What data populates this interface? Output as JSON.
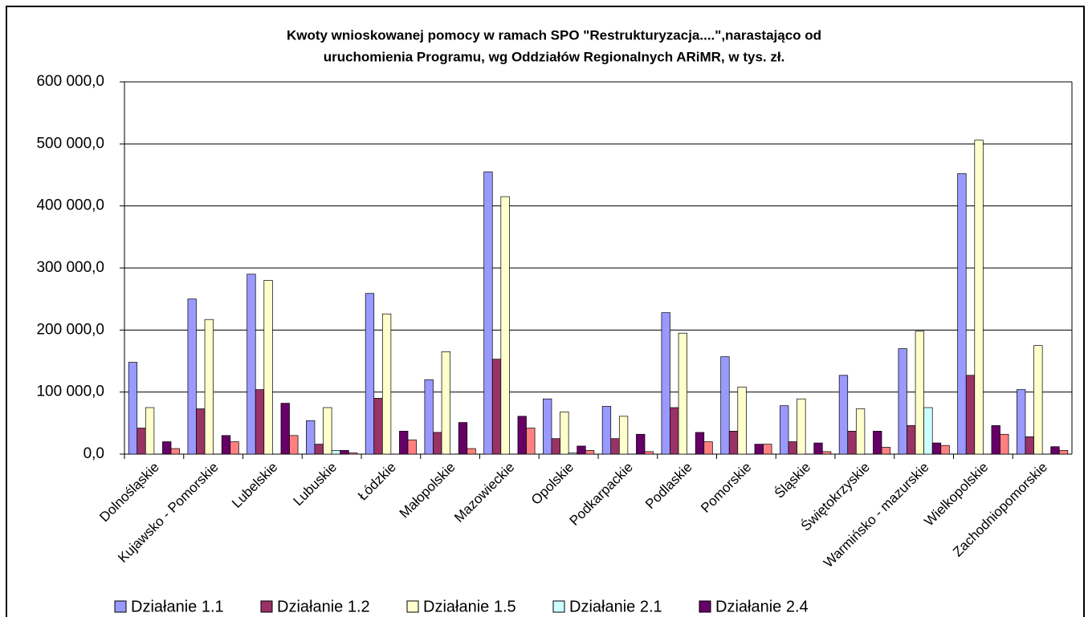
{
  "chart_data": {
    "type": "bar",
    "title": [
      "Kwoty wnioskowanej pomocy w ramach SPO \"Restrukturyzacja....\",narastająco od",
      "uruchomienia Programu, wg Oddziałów Regionalnych ARiMR, w tys. zł."
    ],
    "categories": [
      "Dolnośląskie",
      "Kujawsko - Pomorskie",
      "Lubelskie",
      "Lubuskie",
      "Łódzkie",
      "Małopolskie",
      "Mazowieckie",
      "Opolskie",
      "Podkarpackie",
      "Podlaskie",
      "Pomorskie",
      "Śląskie",
      "Świętokrzyskie",
      "Warmińsko - mazurskie",
      "Wielkopolskie",
      "Zachodniopomorskie"
    ],
    "series": [
      {
        "name": "Działanie 1.1",
        "color": "#9999ff",
        "values": [
          148000,
          250000,
          290000,
          54000,
          259000,
          120000,
          455000,
          89000,
          77000,
          228000,
          157000,
          78000,
          127000,
          170000,
          452000,
          104000
        ]
      },
      {
        "name": "Działanie 1.2",
        "color": "#993366",
        "values": [
          42000,
          73000,
          104000,
          16000,
          90000,
          35000,
          153000,
          25000,
          25000,
          75000,
          37000,
          20000,
          37000,
          46000,
          127000,
          28000
        ]
      },
      {
        "name": "Działanie 1.5",
        "color": "#ffffcc",
        "values": [
          75000,
          217000,
          280000,
          75000,
          226000,
          165000,
          415000,
          68000,
          61000,
          195000,
          108000,
          89000,
          73000,
          198000,
          506000,
          175000
        ]
      },
      {
        "name": "Działanie 2.1",
        "color": "#ccffff",
        "values": [
          0,
          0,
          0,
          6000,
          0,
          0,
          0,
          2000,
          0,
          0,
          0,
          0,
          0,
          75000,
          0,
          0
        ]
      },
      {
        "name": "Działanie 2.4",
        "color": "#660066",
        "values": [
          20000,
          30000,
          82000,
          6000,
          37000,
          51000,
          61000,
          13000,
          32000,
          35000,
          16000,
          18000,
          37000,
          18000,
          46000,
          12000
        ]
      },
      {
        "color": "#ff8080",
        "values": [
          9000,
          20000,
          30000,
          2000,
          23000,
          9000,
          42000,
          6000,
          4000,
          20000,
          16000,
          4000,
          11000,
          14000,
          32000,
          6000
        ]
      }
    ],
    "ylim": [
      0,
      600000
    ],
    "yticks": [
      {
        "value": 0,
        "label": "0,0"
      },
      {
        "value": 100000,
        "label": "100 000,0"
      },
      {
        "value": 200000,
        "label": "200 000,0"
      },
      {
        "value": 300000,
        "label": "300 000,0"
      },
      {
        "value": 400000,
        "label": "400 000,0"
      },
      {
        "value": 500000,
        "label": "500 000,0"
      },
      {
        "value": 600000,
        "label": "600 000,0"
      }
    ],
    "grid": true
  }
}
